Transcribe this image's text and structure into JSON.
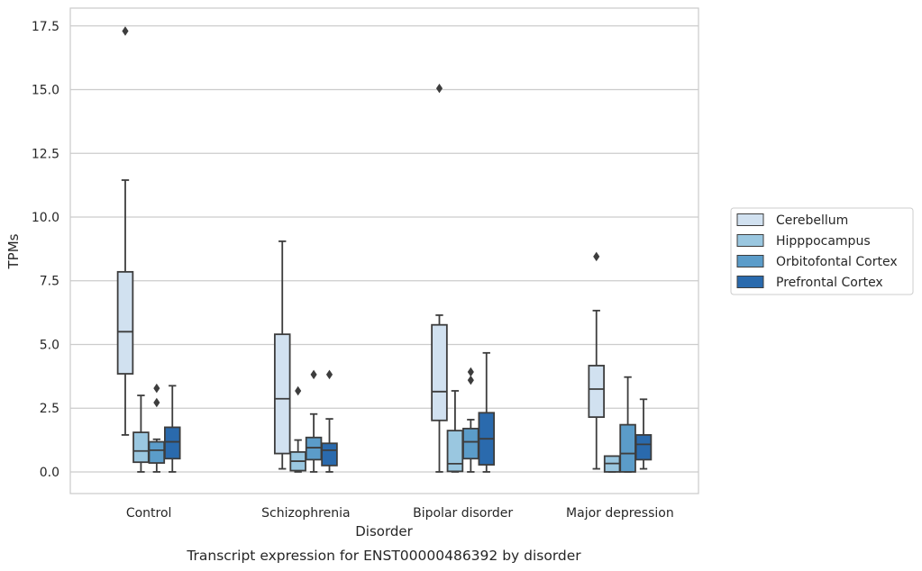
{
  "chart_data": {
    "type": "box",
    "caption": "Transcript expression for ENST00000486392 by disorder",
    "xlabel": "Disorder",
    "ylabel": "TPMs",
    "ylim": [
      -0.85,
      18.2
    ],
    "yticks": [
      "0.0",
      "2.5",
      "5.0",
      "7.5",
      "10.0",
      "12.5",
      "15.0",
      "17.5"
    ],
    "grid": "horizontal",
    "legend_position": "right",
    "categories": [
      "Control",
      "Schizophrenia",
      "Bipolar disorder",
      "Major depression"
    ],
    "series": [
      {
        "name": "Cerebellum",
        "color": "#d1e1f0",
        "boxes": [
          {
            "whisker_low": 1.45,
            "q1": 3.85,
            "median": 5.5,
            "q3": 7.85,
            "whisker_high": 11.45,
            "outliers": [
              17.3
            ]
          },
          {
            "whisker_low": 0.12,
            "q1": 0.72,
            "median": 2.87,
            "q3": 5.4,
            "whisker_high": 9.05,
            "outliers": []
          },
          {
            "whisker_low": 0.0,
            "q1": 2.02,
            "median": 3.15,
            "q3": 5.77,
            "whisker_high": 6.15,
            "outliers": [
              15.05
            ]
          },
          {
            "whisker_low": 0.12,
            "q1": 2.15,
            "median": 3.25,
            "q3": 4.17,
            "whisker_high": 6.33,
            "outliers": [
              8.45
            ]
          }
        ]
      },
      {
        "name": "Hipppocampus",
        "color": "#9ac7e0",
        "boxes": [
          {
            "whisker_low": 0.0,
            "q1": 0.38,
            "median": 0.82,
            "q3": 1.55,
            "whisker_high": 3.0,
            "outliers": []
          },
          {
            "whisker_low": 0.0,
            "q1": 0.05,
            "median": 0.42,
            "q3": 0.78,
            "whisker_high": 1.25,
            "outliers": [
              3.18
            ]
          },
          {
            "whisker_low": 0.0,
            "q1": 0.02,
            "median": 0.32,
            "q3": 1.62,
            "whisker_high": 3.18,
            "outliers": []
          },
          {
            "whisker_low": 0.0,
            "q1": 0.0,
            "median": 0.33,
            "q3": 0.62,
            "whisker_high": 0.62,
            "outliers": []
          }
        ]
      },
      {
        "name": "Orbitofontal Cortex",
        "color": "#5b9cc9",
        "boxes": [
          {
            "whisker_low": 0.0,
            "q1": 0.35,
            "median": 0.85,
            "q3": 1.18,
            "whisker_high": 1.28,
            "outliers": [
              2.72,
              3.28
            ]
          },
          {
            "whisker_low": 0.0,
            "q1": 0.48,
            "median": 0.95,
            "q3": 1.35,
            "whisker_high": 2.27,
            "outliers": [
              3.82
            ]
          },
          {
            "whisker_low": 0.0,
            "q1": 0.52,
            "median": 1.18,
            "q3": 1.7,
            "whisker_high": 2.05,
            "outliers": [
              3.6,
              3.92
            ]
          },
          {
            "whisker_low": 0.0,
            "q1": 0.0,
            "median": 0.72,
            "q3": 1.85,
            "whisker_high": 3.72,
            "outliers": []
          }
        ]
      },
      {
        "name": "Prefrontal Cortex",
        "color": "#2a6aad",
        "boxes": [
          {
            "whisker_low": 0.0,
            "q1": 0.52,
            "median": 1.18,
            "q3": 1.75,
            "whisker_high": 3.38,
            "outliers": []
          },
          {
            "whisker_low": 0.0,
            "q1": 0.25,
            "median": 0.85,
            "q3": 1.12,
            "whisker_high": 2.08,
            "outliers": [
              3.82
            ]
          },
          {
            "whisker_low": 0.0,
            "q1": 0.28,
            "median": 1.3,
            "q3": 2.32,
            "whisker_high": 4.67,
            "outliers": []
          },
          {
            "whisker_low": 0.12,
            "q1": 0.48,
            "median": 1.08,
            "q3": 1.45,
            "whisker_high": 2.85,
            "outliers": []
          }
        ]
      }
    ]
  },
  "colors": {
    "box_edge": "#3d3d3d",
    "grid": "#cccccc",
    "frame": "#cccccc",
    "text": "#262626"
  }
}
